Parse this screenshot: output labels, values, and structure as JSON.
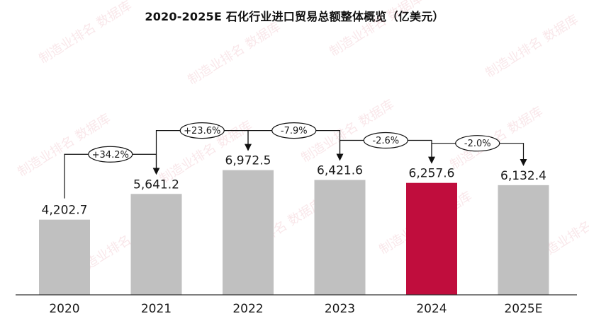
{
  "chart_data": {
    "type": "bar",
    "title": "2020-2025E 石化行业进口贸易总额整体概览（亿美元）",
    "categories": [
      "2020",
      "2021",
      "2022",
      "2023",
      "2024",
      "2025E"
    ],
    "values": [
      4202.7,
      5641.2,
      6972.5,
      6421.6,
      6257.6,
      6132.4
    ],
    "value_labels": [
      "4,202.7",
      "5,641.2",
      "6,972.5",
      "6,421.6",
      "6,257.6",
      "6,132.4"
    ],
    "growth_labels": [
      "+34.2%",
      "+23.6%",
      "-7.9%",
      "-2.6%",
      "-2.0%"
    ],
    "highlight_category": "2024",
    "colors": {
      "bar": "#c0c0c0",
      "highlight": "#c00d3d",
      "axis": "#333333"
    },
    "watermark": "制造业排名 数据库",
    "grid": false,
    "legend": "none"
  }
}
